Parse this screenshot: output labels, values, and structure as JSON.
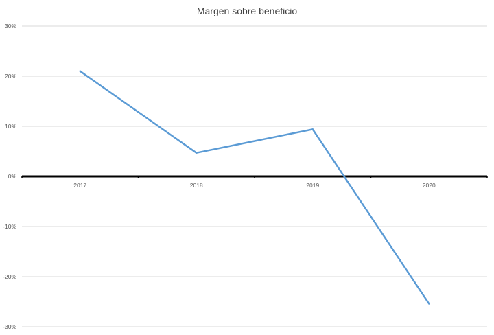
{
  "chart_data": {
    "type": "line",
    "title": "Margen sobre beneficio",
    "categories": [
      "2017",
      "2018",
      "2019",
      "2020"
    ],
    "series": [
      {
        "values": [
          0.21,
          0.047,
          0.094,
          -0.254
        ]
      }
    ],
    "ylim": [
      -0.3,
      0.3
    ],
    "ytick_values": [
      0.3,
      0.2,
      0.1,
      0,
      -0.1,
      -0.2,
      -0.3
    ],
    "ytick_labels": [
      "30%",
      "20%",
      "10%",
      "0%",
      "-10%",
      "-20%",
      "-30%"
    ],
    "xlabel": "",
    "ylabel": "",
    "grid": true,
    "legend": "none",
    "colors": {
      "series": "#5b9bd5",
      "grid": "#d9d9d9",
      "zero_axis": "#000000",
      "text": "#595959"
    }
  }
}
